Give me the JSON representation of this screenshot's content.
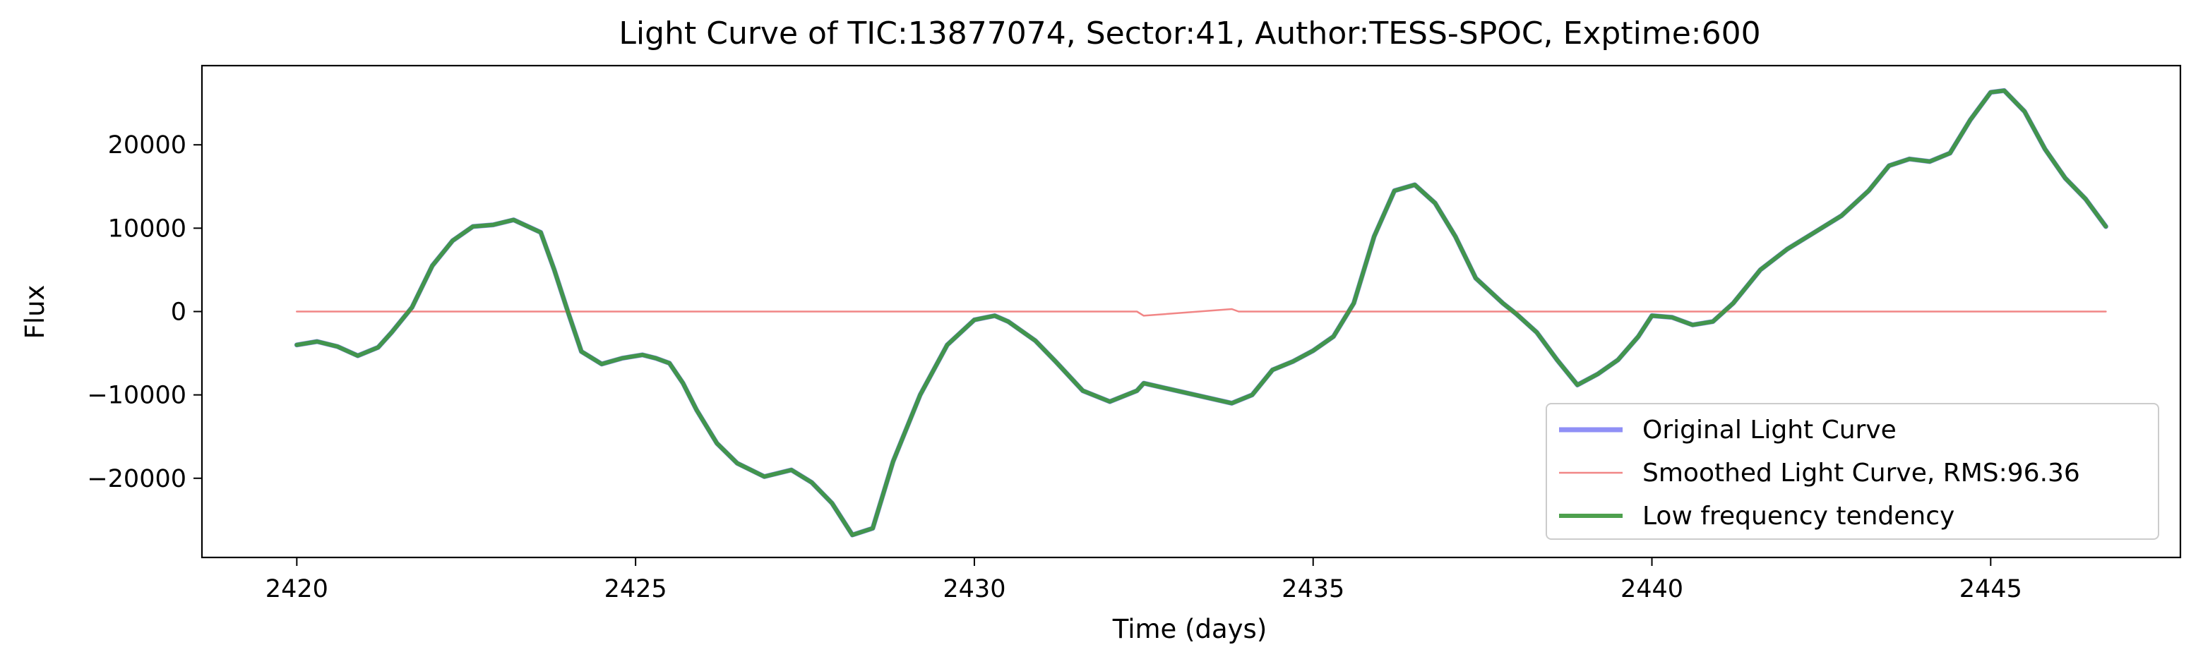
{
  "chart_data": {
    "type": "line",
    "title": "Light Curve of TIC:13877074, Sector:41, Author:TESS-SPOC, Exptime:600",
    "xlabel": "Time (days)",
    "ylabel": "Flux",
    "xlim": [
      2418.6,
      2447.8
    ],
    "ylim": [
      -29500,
      29500
    ],
    "xticks": [
      2420,
      2425,
      2430,
      2435,
      2440,
      2445
    ],
    "yticks": [
      -20000,
      -10000,
      0,
      10000,
      20000
    ],
    "xtick_labels": [
      "2420",
      "2425",
      "2430",
      "2435",
      "2440",
      "2445"
    ],
    "ytick_labels": [
      "−20000",
      "−10000",
      "0",
      "10000",
      "20000"
    ],
    "grid": false,
    "legend_position": "lower-right",
    "series": [
      {
        "name": "Original Light Curve",
        "color": "#7b7bf5",
        "x": [
          2420.0,
          2420.3,
          2420.6,
          2420.9,
          2421.2,
          2421.4,
          2421.7,
          2422.0,
          2422.3,
          2422.6,
          2422.9,
          2423.2,
          2423.6,
          2423.8,
          2424.0,
          2424.2,
          2424.5,
          2424.8,
          2425.1,
          2425.3,
          2425.5,
          2425.7,
          2425.9,
          2426.2,
          2426.5,
          2426.9,
          2427.3,
          2427.6,
          2427.9,
          2428.2,
          2428.5,
          2428.8,
          2429.2,
          2429.6,
          2430.0,
          2430.3,
          2430.5,
          2430.9,
          2431.2,
          2431.6,
          2432.0,
          2432.4,
          2432.5,
          2433.8,
          2434.1,
          2434.4,
          2434.7,
          2435.0,
          2435.3,
          2435.6,
          2435.9,
          2436.2,
          2436.5,
          2436.8,
          2437.1,
          2437.4,
          2437.8,
          2438.0,
          2438.3,
          2438.6,
          2438.9,
          2439.2,
          2439.5,
          2439.8,
          2440.0,
          2440.3,
          2440.6,
          2440.9,
          2441.2,
          2441.6,
          2442.0,
          2442.4,
          2442.8,
          2443.2,
          2443.5,
          2443.8,
          2444.1,
          2444.4,
          2444.7,
          2445.0,
          2445.2,
          2445.5,
          2445.8,
          2446.1,
          2446.4,
          2446.7
        ],
        "values": [
          -4000,
          -3600,
          -4200,
          -5300,
          -4300,
          -2500,
          500,
          5500,
          8500,
          10200,
          10400,
          11000,
          9500,
          5000,
          0,
          -4800,
          -6300,
          -5600,
          -5200,
          -5600,
          -6200,
          -8600,
          -11800,
          -15800,
          -18200,
          -19800,
          -19000,
          -20500,
          -23000,
          -26800,
          -26000,
          -18000,
          -10000,
          -4000,
          -1000,
          -500,
          -1200,
          -3500,
          -6000,
          -9500,
          -10800,
          -9500,
          -8600,
          -11000,
          -10000,
          -7000,
          -6000,
          -4700,
          -3000,
          1000,
          9000,
          14500,
          15200,
          13000,
          9000,
          4000,
          1000,
          -300,
          -2500,
          -5800,
          -8800,
          -7500,
          -5800,
          -3000,
          -500,
          -700,
          -1600,
          -1200,
          1000,
          5000,
          7500,
          9500,
          11500,
          14500,
          17500,
          18300,
          18000,
          19000,
          23000,
          26300,
          26500,
          24000,
          19500,
          16000,
          13500,
          10200
        ]
      },
      {
        "name": "Smoothed Light Curve, RMS:96.36",
        "color": "#f08080",
        "x": [
          2420.0,
          2423.0,
          2426.0,
          2429.0,
          2432.4,
          2432.5,
          2433.8,
          2433.9,
          2437.0,
          2440.0,
          2443.0,
          2446.7
        ],
        "values": [
          0,
          0,
          0,
          0,
          0,
          -500,
          300,
          0,
          0,
          0,
          0,
          0
        ]
      },
      {
        "name": "Low frequency tendency",
        "color": "#3a963a",
        "x": [
          2420.0,
          2420.3,
          2420.6,
          2420.9,
          2421.2,
          2421.4,
          2421.7,
          2422.0,
          2422.3,
          2422.6,
          2422.9,
          2423.2,
          2423.6,
          2423.8,
          2424.0,
          2424.2,
          2424.5,
          2424.8,
          2425.1,
          2425.3,
          2425.5,
          2425.7,
          2425.9,
          2426.2,
          2426.5,
          2426.9,
          2427.3,
          2427.6,
          2427.9,
          2428.2,
          2428.5,
          2428.8,
          2429.2,
          2429.6,
          2430.0,
          2430.3,
          2430.5,
          2430.9,
          2431.2,
          2431.6,
          2432.0,
          2432.4,
          2432.5,
          2433.8,
          2434.1,
          2434.4,
          2434.7,
          2435.0,
          2435.3,
          2435.6,
          2435.9,
          2436.2,
          2436.5,
          2436.8,
          2437.1,
          2437.4,
          2437.8,
          2438.0,
          2438.3,
          2438.6,
          2438.9,
          2439.2,
          2439.5,
          2439.8,
          2440.0,
          2440.3,
          2440.6,
          2440.9,
          2441.2,
          2441.6,
          2442.0,
          2442.4,
          2442.8,
          2443.2,
          2443.5,
          2443.8,
          2444.1,
          2444.4,
          2444.7,
          2445.0,
          2445.2,
          2445.5,
          2445.8,
          2446.1,
          2446.4,
          2446.7
        ],
        "values": [
          -4000,
          -3600,
          -4200,
          -5300,
          -4300,
          -2500,
          500,
          5500,
          8500,
          10200,
          10400,
          11000,
          9500,
          5000,
          0,
          -4800,
          -6300,
          -5600,
          -5200,
          -5600,
          -6200,
          -8600,
          -11800,
          -15800,
          -18200,
          -19800,
          -19000,
          -20500,
          -23000,
          -26800,
          -26000,
          -18000,
          -10000,
          -4000,
          -1000,
          -500,
          -1200,
          -3500,
          -6000,
          -9500,
          -10800,
          -9500,
          -8600,
          -11000,
          -10000,
          -7000,
          -6000,
          -4700,
          -3000,
          1000,
          9000,
          14500,
          15200,
          13000,
          9000,
          4000,
          1000,
          -300,
          -2500,
          -5800,
          -8800,
          -7500,
          -5800,
          -3000,
          -500,
          -700,
          -1600,
          -1200,
          1000,
          5000,
          7500,
          9500,
          11500,
          14500,
          17500,
          18300,
          18000,
          19000,
          23000,
          26300,
          26500,
          24000,
          19500,
          16000,
          13500,
          10200
        ]
      }
    ]
  }
}
